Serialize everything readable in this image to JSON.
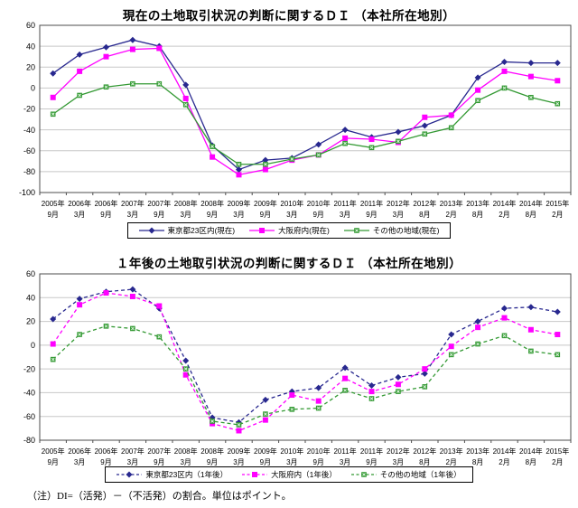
{
  "page_colors": {
    "background": "#ffffff",
    "grid": "#c8c8c8",
    "plot_border": "#4d4d4d",
    "tokyo": "#28288f",
    "osaka": "#ff00ff",
    "other": "#339933"
  },
  "note": "（注）DI=（活発）－（不活発）の割合。単位はポイント。",
  "chart_data": [
    {
      "type": "line",
      "id": "current",
      "title": "現在の土地取引状況の判断に関するＤＩ （本社所在地別）",
      "xlabel": "",
      "ylabel": "",
      "ylim": [
        -100,
        60
      ],
      "yticks": [
        60,
        40,
        20,
        0,
        -20,
        -40,
        -60,
        -80,
        -100
      ],
      "grid": "horizontal",
      "line_dash": "solid",
      "legend_position": "bottom",
      "categories": [
        "2005年9月",
        "2006年3月",
        "2006年9月",
        "2007年3月",
        "2007年9月",
        "2008年3月",
        "2008年9月",
        "2009年3月",
        "2009年9月",
        "2010年3月",
        "2010年9月",
        "2011年3月",
        "2011年9月",
        "2012年3月",
        "2012年8月",
        "2013年2月",
        "2013年8月",
        "2014年2月",
        "2014年8月",
        "2015年2月"
      ],
      "series": [
        {
          "key": "tokyo23",
          "name": "東京都23区内(現在)",
          "color": "#28288f",
          "marker": "diamond",
          "values": [
            14,
            32,
            39,
            46,
            40,
            3,
            -55,
            -78,
            -69,
            -67,
            -54,
            -40,
            -47,
            -42,
            -36,
            -26,
            10,
            25,
            24,
            24
          ]
        },
        {
          "key": "osaka",
          "name": "大阪府内(現在)",
          "color": "#ff00ff",
          "marker": "square",
          "values": [
            -9,
            16,
            30,
            37,
            38,
            -10,
            -66,
            -83,
            -78,
            -69,
            -64,
            -48,
            -49,
            -52,
            -28,
            -26,
            -2,
            16,
            11,
            7
          ]
        },
        {
          "key": "other",
          "name": "その他の地域(現在)",
          "color": "#339933",
          "marker": "xsquare",
          "values": [
            -25,
            -7,
            1,
            4,
            4,
            -16,
            -56,
            -73,
            -73,
            -68,
            -64,
            -53,
            -57,
            -51,
            -44,
            -38,
            -12,
            0,
            -9,
            -15
          ]
        }
      ]
    },
    {
      "type": "line",
      "id": "oneyear",
      "title": "１年後の土地取引状況の判断に関するＤＩ （本社所在地別）",
      "xlabel": "",
      "ylabel": "",
      "ylim": [
        -80,
        60
      ],
      "yticks": [
        60,
        40,
        20,
        0,
        -20,
        -40,
        -60,
        -80
      ],
      "grid": "horizontal",
      "line_dash": "dashed",
      "legend_position": "bottom",
      "categories": [
        "2005年9月",
        "2006年3月",
        "2006年9月",
        "2007年3月",
        "2007年9月",
        "2008年3月",
        "2008年9月",
        "2009年3月",
        "2009年9月",
        "2010年3月",
        "2010年9月",
        "2011年3月",
        "2011年9月",
        "2012年3月",
        "2012年8月",
        "2013年2月",
        "2013年8月",
        "2014年2月",
        "2014年8月",
        "2015年2月"
      ],
      "series": [
        {
          "key": "tokyo23",
          "name": "東京都23区内（1年後）",
          "color": "#28288f",
          "marker": "diamond",
          "values": [
            22,
            39,
            45,
            47,
            31,
            -13,
            -61,
            -65,
            -46,
            -39,
            -36,
            -19,
            -34,
            -27,
            -24,
            9,
            20,
            31,
            32,
            28
          ]
        },
        {
          "key": "osaka",
          "name": "大阪府内（1年後）",
          "color": "#ff00ff",
          "marker": "square",
          "values": [
            1,
            34,
            44,
            41,
            33,
            -25,
            -66,
            -72,
            -63,
            -42,
            -47,
            -28,
            -39,
            -33,
            -20,
            -1,
            15,
            23,
            13,
            9
          ]
        },
        {
          "key": "other",
          "name": "その他の地域（1年後）",
          "color": "#339933",
          "marker": "xsquare",
          "values": [
            -12,
            9,
            16,
            14,
            7,
            -20,
            -64,
            -67,
            -58,
            -54,
            -53,
            -38,
            -45,
            -39,
            -35,
            -8,
            1,
            8,
            -5,
            -8
          ]
        }
      ]
    }
  ]
}
